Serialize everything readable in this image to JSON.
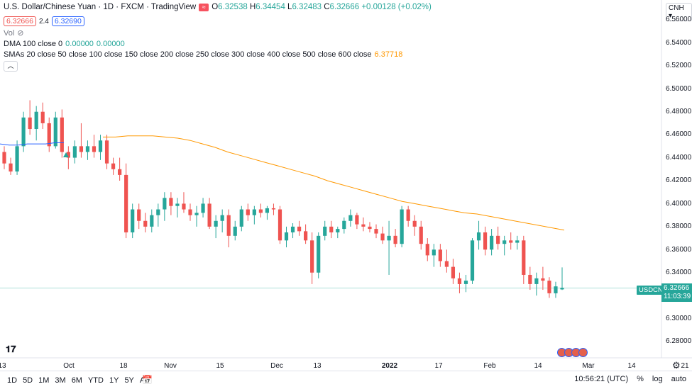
{
  "header": {
    "title": "U.S. Dollar/Chinese Yuan · 1D · FXCM · TradingView",
    "open_label": "O",
    "open": "6.32538",
    "high_label": "H",
    "high": "6.34454",
    "low_label": "L",
    "low": "6.32483",
    "close_label": "C",
    "close": "6.32666",
    "change": "+0.00128 (+0.02%)",
    "bid": "6.32666",
    "spread": "2.4",
    "ask": "6.32690"
  },
  "indicators": {
    "vol_label": "Vol",
    "dma_label": "DMA 100 close 0",
    "dma_val1": "0.00000",
    "dma_val2": "0.00000",
    "sma_label": "SMAs 20 close 50 close 100 close 150 close 200 close 250 close 300 close 400 close 500 close 600 close",
    "sma_val": "6.37718"
  },
  "currency": "CNH",
  "symbol_tag": "USDCNH",
  "price_tag": {
    "price": "6.32666",
    "countdown": "11:03:39"
  },
  "price_axis": [
    "6.56000",
    "6.54000",
    "6.52000",
    "6.50000",
    "6.48000",
    "6.46000",
    "6.44000",
    "6.42000",
    "6.40000",
    "6.38000",
    "6.36000",
    "6.34000",
    "6.30000",
    "6.28000"
  ],
  "time_axis": [
    "13",
    "Oct",
    "18",
    "Nov",
    "15",
    "Dec",
    "13",
    "2022",
    "17",
    "Feb",
    "14",
    "Mar",
    "14",
    "21"
  ],
  "ranges": [
    "1D",
    "5D",
    "1M",
    "3M",
    "6M",
    "YTD",
    "1Y",
    "5Y",
    "All"
  ],
  "clock": "10:56:21 (UTC)",
  "scale_pct": "%",
  "scale_log": "log",
  "scale_auto": "auto",
  "colors": {
    "up": "#26a69a",
    "down": "#ef5350",
    "sma": "#ff9800",
    "ma_blue": "#2962ff"
  },
  "chart_data": {
    "type": "candlestick",
    "ylim": [
      6.27,
      6.565
    ],
    "series_ohlc": [
      [
        6.445,
        6.45,
        6.43,
        6.435
      ],
      [
        6.435,
        6.44,
        6.425,
        6.428
      ],
      [
        6.428,
        6.455,
        6.425,
        6.45
      ],
      [
        6.45,
        6.48,
        6.445,
        6.475
      ],
      [
        6.475,
        6.49,
        6.46,
        6.465
      ],
      [
        6.465,
        6.485,
        6.455,
        6.48
      ],
      [
        6.48,
        6.488,
        6.465,
        6.47
      ],
      [
        6.47,
        6.475,
        6.445,
        6.45
      ],
      [
        6.45,
        6.48,
        6.448,
        6.475
      ],
      [
        6.475,
        6.482,
        6.44,
        6.445
      ],
      [
        6.445,
        6.45,
        6.43,
        6.44
      ],
      [
        6.44,
        6.455,
        6.435,
        6.45
      ],
      [
        6.45,
        6.47,
        6.44,
        6.445
      ],
      [
        6.445,
        6.455,
        6.438,
        6.45
      ],
      [
        6.45,
        6.46,
        6.44,
        6.445
      ],
      [
        6.445,
        6.46,
        6.438,
        6.455
      ],
      [
        6.455,
        6.46,
        6.43,
        6.435
      ],
      [
        6.435,
        6.44,
        6.425,
        6.43
      ],
      [
        6.43,
        6.44,
        6.42,
        6.425
      ],
      [
        6.425,
        6.435,
        6.37,
        6.375
      ],
      [
        6.375,
        6.4,
        6.37,
        6.395
      ],
      [
        6.395,
        6.4,
        6.378,
        6.385
      ],
      [
        6.385,
        6.392,
        6.375,
        6.38
      ],
      [
        6.38,
        6.395,
        6.375,
        6.39
      ],
      [
        6.39,
        6.4,
        6.38,
        6.395
      ],
      [
        6.395,
        6.41,
        6.385,
        6.405
      ],
      [
        6.405,
        6.41,
        6.39,
        6.398
      ],
      [
        6.398,
        6.405,
        6.388,
        6.4
      ],
      [
        6.4,
        6.41,
        6.392,
        6.395
      ],
      [
        6.395,
        6.4,
        6.385,
        6.39
      ],
      [
        6.39,
        6.398,
        6.38,
        6.392
      ],
      [
        6.392,
        6.405,
        6.388,
        6.4
      ],
      [
        6.4,
        6.405,
        6.378,
        6.38
      ],
      [
        6.38,
        6.39,
        6.37,
        6.385
      ],
      [
        6.385,
        6.395,
        6.375,
        6.39
      ],
      [
        6.39,
        6.395,
        6.362,
        6.372
      ],
      [
        6.372,
        6.385,
        6.368,
        6.38
      ],
      [
        6.38,
        6.398,
        6.376,
        6.395
      ],
      [
        6.395,
        6.4,
        6.385,
        6.39
      ],
      [
        6.39,
        6.398,
        6.382,
        6.395
      ],
      [
        6.395,
        6.4,
        6.388,
        6.392
      ],
      [
        6.392,
        6.398,
        6.386,
        6.396
      ],
      [
        6.396,
        6.4,
        6.39,
        6.395
      ],
      [
        6.395,
        6.398,
        6.365,
        6.368
      ],
      [
        6.368,
        6.38,
        6.362,
        6.375
      ],
      [
        6.375,
        6.383,
        6.37,
        6.38
      ],
      [
        6.38,
        6.385,
        6.372,
        6.376
      ],
      [
        6.376,
        6.382,
        6.365,
        6.368
      ],
      [
        6.368,
        6.375,
        6.33,
        6.34
      ],
      [
        6.34,
        6.375,
        6.335,
        6.372
      ],
      [
        6.372,
        6.385,
        6.368,
        6.38
      ],
      [
        6.38,
        6.385,
        6.37,
        6.375
      ],
      [
        6.375,
        6.38,
        6.37,
        6.378
      ],
      [
        6.378,
        6.388,
        6.374,
        6.385
      ],
      [
        6.385,
        6.395,
        6.38,
        6.39
      ],
      [
        6.39,
        6.392,
        6.378,
        6.382
      ],
      [
        6.382,
        6.388,
        6.376,
        6.38
      ],
      [
        6.38,
        6.384,
        6.375,
        6.378
      ],
      [
        6.378,
        6.382,
        6.37,
        6.374
      ],
      [
        6.374,
        6.38,
        6.365,
        6.368
      ],
      [
        6.368,
        6.385,
        6.338,
        6.372
      ],
      [
        6.372,
        6.378,
        6.362,
        6.365
      ],
      [
        6.365,
        6.398,
        6.362,
        6.395
      ],
      [
        6.395,
        6.398,
        6.38,
        6.385
      ],
      [
        6.385,
        6.39,
        6.372,
        6.38
      ],
      [
        6.38,
        6.385,
        6.36,
        6.365
      ],
      [
        6.365,
        6.37,
        6.35,
        6.355
      ],
      [
        6.355,
        6.365,
        6.345,
        6.36
      ],
      [
        6.36,
        6.365,
        6.345,
        6.35
      ],
      [
        6.35,
        6.36,
        6.34,
        6.345
      ],
      [
        6.345,
        6.352,
        6.33,
        6.335
      ],
      [
        6.335,
        6.34,
        6.322,
        6.33
      ],
      [
        6.33,
        6.338,
        6.323,
        6.333
      ],
      [
        6.333,
        6.37,
        6.33,
        6.368
      ],
      [
        6.368,
        6.385,
        6.36,
        6.375
      ],
      [
        6.375,
        6.38,
        6.355,
        6.36
      ],
      [
        6.36,
        6.378,
        6.355,
        6.372
      ],
      [
        6.372,
        6.38,
        6.36,
        6.365
      ],
      [
        6.365,
        6.372,
        6.355,
        6.368
      ],
      [
        6.368,
        6.375,
        6.36,
        6.366
      ],
      [
        6.366,
        6.372,
        6.36,
        6.368
      ],
      [
        6.368,
        6.372,
        6.33,
        6.338
      ],
      [
        6.338,
        6.345,
        6.325,
        6.33
      ],
      [
        6.33,
        6.34,
        6.32,
        6.335
      ],
      [
        6.335,
        6.345,
        6.325,
        6.333
      ],
      [
        6.333,
        6.336,
        6.318,
        6.322
      ],
      [
        6.322,
        6.332,
        6.318,
        6.328
      ],
      [
        6.32538,
        6.34454,
        6.32483,
        6.32666
      ]
    ],
    "sma_curve": [
      [
        6.458,
        6.458
      ],
      [
        6.459,
        6.459
      ],
      [
        6.459,
        6.458
      ],
      [
        6.457,
        6.455
      ],
      [
        6.452,
        6.449
      ],
      [
        6.445,
        6.442
      ],
      [
        6.439,
        6.436
      ],
      [
        6.433,
        6.43
      ],
      [
        6.427,
        6.424
      ],
      [
        6.42,
        6.417
      ],
      [
        6.414,
        6.411
      ],
      [
        6.408,
        6.405
      ],
      [
        6.402,
        6.4
      ],
      [
        6.398,
        6.396
      ],
      [
        6.394,
        6.392
      ],
      [
        6.391,
        6.389
      ],
      [
        6.387,
        6.385
      ],
      [
        6.383,
        6.381
      ],
      [
        6.379,
        6.377
      ]
    ],
    "blue_ma": [
      6.452,
      6.451,
      6.451,
      6.452,
      6.452,
      6.452,
      6.453,
      6.453
    ]
  }
}
